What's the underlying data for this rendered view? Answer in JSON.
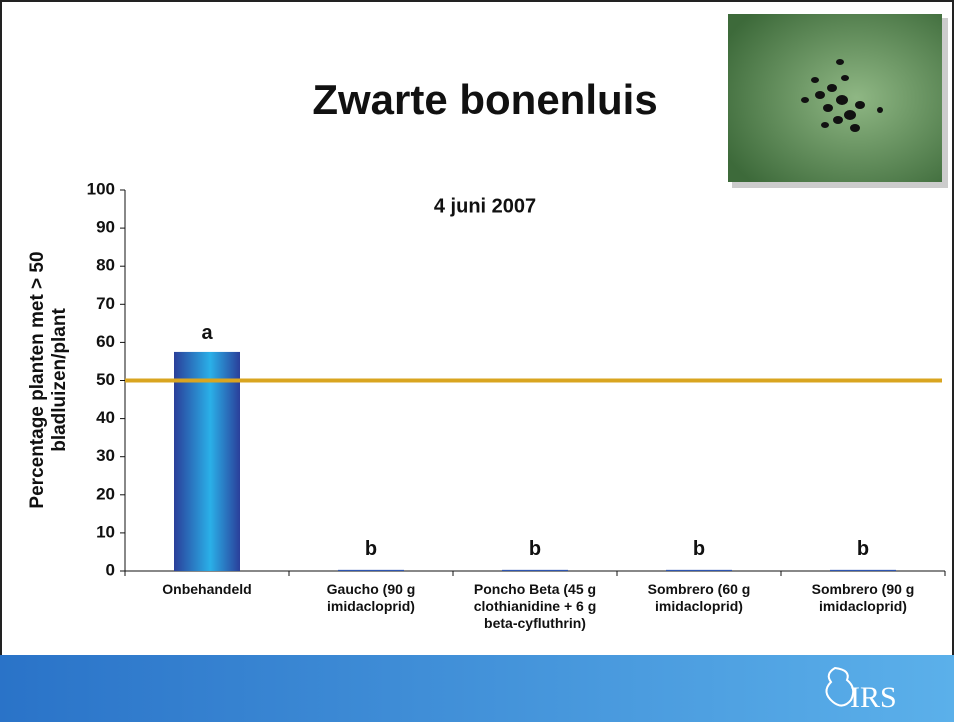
{
  "chart_data": {
    "type": "bar",
    "title": "Zwarte bonenluis",
    "subtitle": "4 juni 2007",
    "ylabel": [
      "Percentage planten met > 50",
      "bladluizen/plant"
    ],
    "categories": [
      "Onbehandeld",
      "Gaucho (90 g imidacloprid)",
      "Poncho Beta (45 g clothianidine + 6 g beta-cyfluthrin)",
      "Sombrero (60 g imidacloprid)",
      "Sombrero (90 g imidacloprid)"
    ],
    "values": [
      57.5,
      0.3,
      0.3,
      0.3,
      0.3
    ],
    "annotations": [
      "a",
      "b",
      "b",
      "b",
      "b"
    ],
    "color": "#2f56b0",
    "reference_line": {
      "value": 50,
      "color": "#d9a520"
    },
    "ylim": [
      0,
      100
    ],
    "yticks": [
      0,
      10,
      20,
      30,
      40,
      50,
      60,
      70,
      80,
      90,
      100
    ],
    "logo": "IRS"
  }
}
